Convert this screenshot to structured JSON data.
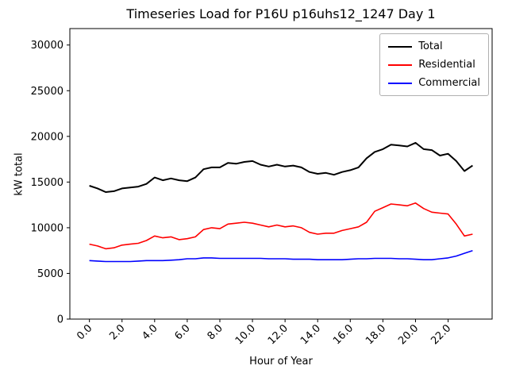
{
  "chart_data": {
    "type": "line",
    "title": "Timeseries Load for P16U p16uhs12_1247  Day 1",
    "xlabel": "Hour of Year",
    "ylabel": "kW total",
    "xlim": [
      -1.2,
      24.7
    ],
    "ylim": [
      0,
      31800
    ],
    "grid": false,
    "legend_position": "upper right",
    "y_ticks": [
      0,
      5000,
      10000,
      15000,
      20000,
      25000,
      30000
    ],
    "x_ticks": [
      0,
      2,
      4,
      6,
      8,
      10,
      12,
      14,
      16,
      18,
      20,
      22
    ],
    "x_tick_labels": [
      "0.0",
      "2.0",
      "4.0",
      "6.0",
      "8.0",
      "10.0",
      "12.0",
      "14.0",
      "16.0",
      "18.0",
      "20.0",
      "22.0"
    ],
    "x": [
      0,
      0.5,
      1,
      1.5,
      2,
      2.5,
      3,
      3.5,
      4,
      4.5,
      5,
      5.5,
      6,
      6.5,
      7,
      7.5,
      8,
      8.5,
      9,
      9.5,
      10,
      10.5,
      11,
      11.5,
      12,
      12.5,
      13,
      13.5,
      14,
      14.5,
      15,
      15.5,
      16,
      16.5,
      17,
      17.5,
      18,
      18.5,
      19,
      19.5,
      20,
      20.5,
      21,
      21.5,
      22,
      22.5,
      23,
      23.5
    ],
    "series": [
      {
        "name": "Total",
        "color": "#000000",
        "width": 2,
        "values": [
          14600,
          14300,
          13900,
          14000,
          14300,
          14400,
          14500,
          14800,
          15500,
          15200,
          15400,
          15200,
          15100,
          15500,
          16400,
          16600,
          16600,
          17100,
          17000,
          17200,
          17300,
          16900,
          16700,
          16900,
          16700,
          16800,
          16600,
          16100,
          15900,
          16000,
          15800,
          16100,
          16300,
          16600,
          17600,
          18300,
          18600,
          19100,
          19000,
          18900,
          19300,
          18600,
          18500,
          17900,
          18100,
          17300,
          16200,
          16800
        ]
      },
      {
        "name": "Residential",
        "color": "#ff0000",
        "width": 1.6,
        "values": [
          8200,
          8000,
          7700,
          7800,
          8100,
          8200,
          8300,
          8600,
          9100,
          8900,
          9000,
          8700,
          8800,
          9000,
          9800,
          10000,
          9900,
          10400,
          10500,
          10600,
          10500,
          10300,
          10100,
          10300,
          10100,
          10200,
          10000,
          9500,
          9300,
          9400,
          9400,
          9700,
          9900,
          10100,
          10600,
          11800,
          12200,
          12600,
          12500,
          12400,
          12700,
          12100,
          11700,
          11600,
          11500,
          10400,
          9100,
          9300
        ]
      },
      {
        "name": "Commercial",
        "color": "#0000ff",
        "width": 1.6,
        "values": [
          6400,
          6350,
          6300,
          6300,
          6300,
          6300,
          6350,
          6400,
          6400,
          6400,
          6450,
          6500,
          6600,
          6600,
          6700,
          6700,
          6650,
          6650,
          6650,
          6650,
          6650,
          6650,
          6600,
          6600,
          6600,
          6550,
          6550,
          6550,
          6500,
          6500,
          6500,
          6500,
          6550,
          6600,
          6600,
          6650,
          6650,
          6650,
          6600,
          6600,
          6550,
          6500,
          6500,
          6600,
          6700,
          6900,
          7200,
          7500
        ]
      }
    ]
  }
}
